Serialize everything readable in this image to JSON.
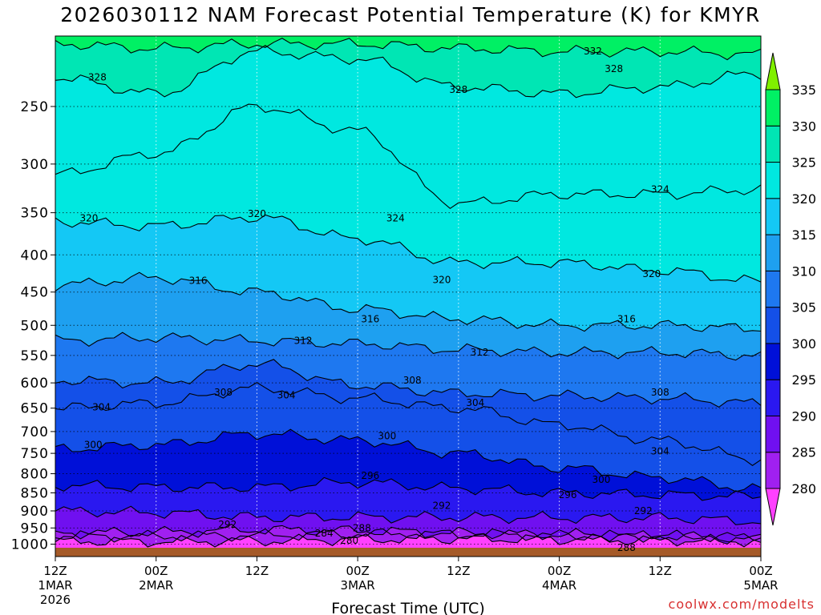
{
  "chart_data": {
    "type": "heatmap",
    "title": "2026030112 NAM Forecast Potential Temperature (K) for KMYR",
    "xlabel": "Forecast Time (UTC)",
    "ylabel": "",
    "y_axis_scale": "log-pressure",
    "ylim": [
      200,
      1040
    ],
    "y_ticks": [
      250,
      300,
      350,
      400,
      450,
      500,
      550,
      600,
      650,
      700,
      750,
      800,
      850,
      900,
      950,
      1000
    ],
    "x_ticks": [
      {
        "h": 0,
        "label": "12Z",
        "sub": "1MAR",
        "sub2": "2026"
      },
      {
        "h": 12,
        "label": "00Z",
        "sub": "2MAR"
      },
      {
        "h": 24,
        "label": "12Z"
      },
      {
        "h": 36,
        "label": "00Z",
        "sub": "3MAR"
      },
      {
        "h": 48,
        "label": "12Z"
      },
      {
        "h": 60,
        "label": "00Z",
        "sub": "4MAR"
      },
      {
        "h": 72,
        "label": "12Z"
      },
      {
        "h": 84,
        "label": "00Z",
        "sub": "5MAR"
      }
    ],
    "xlim_hours": [
      0,
      84
    ],
    "colorbar": {
      "levels": [
        280,
        285,
        290,
        295,
        300,
        305,
        310,
        315,
        320,
        325,
        330,
        335
      ],
      "colors": [
        "#ff40ff",
        "#a020f0",
        "#7010f0",
        "#2a18f0",
        "#0010d8",
        "#1450e8",
        "#1e78f0",
        "#1ea0f0",
        "#14c8f5",
        "#00e8e0",
        "#00e6b4",
        "#00f064",
        "#80f000"
      ]
    },
    "terrain_color": "#a55a28",
    "series": [
      {
        "name": "280",
        "p": [
          990,
          992,
          990,
          985,
          983,
          985,
          988,
          990
        ]
      },
      {
        "name": "284",
        "p": [
          975,
          975,
          972,
          968,
          968,
          972,
          975,
          978
        ]
      },
      {
        "name": "288",
        "p": [
          965,
          963,
          955,
          958,
          965,
          970,
          975,
          985
        ]
      },
      {
        "name": "292",
        "p": [
          900,
          905,
          918,
          918,
          918,
          920,
          920,
          930
        ]
      },
      {
        "name": "296",
        "p": [
          830,
          835,
          835,
          822,
          838,
          850,
          855,
          860
        ]
      },
      {
        "name": "300",
        "p": [
          740,
          730,
          705,
          720,
          750,
          785,
          810,
          840
        ]
      },
      {
        "name": "304",
        "p": [
          650,
          640,
          610,
          630,
          650,
          685,
          720,
          765
        ]
      },
      {
        "name": "308",
        "p": [
          595,
          600,
          565,
          605,
          620,
          625,
          630,
          640
        ]
      },
      {
        "name": "312",
        "p": [
          525,
          520,
          525,
          530,
          540,
          545,
          545,
          550
        ]
      },
      {
        "name": "316",
        "p": [
          440,
          430,
          450,
          475,
          490,
          500,
          500,
          505
        ]
      },
      {
        "name": "320",
        "p": [
          360,
          365,
          355,
          380,
          410,
          410,
          420,
          435
        ]
      },
      {
        "name": "324",
        "p": [
          310,
          290,
          250,
          270,
          340,
          330,
          330,
          325
        ]
      },
      {
        "name": "328",
        "p": [
          228,
          240,
          210,
          215,
          235,
          240,
          235,
          225
        ]
      },
      {
        "name": "332",
        "p": [
          205,
          208,
          205,
          205,
          208,
          210,
          210,
          212
        ]
      }
    ],
    "contour_labels": [
      {
        "text": "328",
        "h": 5.0,
        "p": 228
      },
      {
        "text": "332",
        "h": 64.0,
        "p": 210
      },
      {
        "text": "328",
        "h": 66.5,
        "p": 222
      },
      {
        "text": "328",
        "h": 48.0,
        "p": 237
      },
      {
        "text": "324",
        "h": 72.0,
        "p": 325
      },
      {
        "text": "324",
        "h": 40.5,
        "p": 356
      },
      {
        "text": "320",
        "h": 4.0,
        "p": 356
      },
      {
        "text": "320",
        "h": 24.0,
        "p": 351
      },
      {
        "text": "320",
        "h": 46.0,
        "p": 433
      },
      {
        "text": "320",
        "h": 71.0,
        "p": 425
      },
      {
        "text": "316",
        "h": 17.0,
        "p": 434
      },
      {
        "text": "316",
        "h": 37.5,
        "p": 490
      },
      {
        "text": "316",
        "h": 68.0,
        "p": 490
      },
      {
        "text": "312",
        "h": 29.5,
        "p": 525
      },
      {
        "text": "312",
        "h": 50.5,
        "p": 545
      },
      {
        "text": "308",
        "h": 42.5,
        "p": 595
      },
      {
        "text": "308",
        "h": 20.0,
        "p": 618
      },
      {
        "text": "308",
        "h": 72.0,
        "p": 618
      },
      {
        "text": "304",
        "h": 5.5,
        "p": 648
      },
      {
        "text": "304",
        "h": 27.5,
        "p": 624
      },
      {
        "text": "304",
        "h": 50.0,
        "p": 639
      },
      {
        "text": "304",
        "h": 72.0,
        "p": 745
      },
      {
        "text": "300",
        "h": 4.5,
        "p": 730
      },
      {
        "text": "300",
        "h": 39.5,
        "p": 710
      },
      {
        "text": "300",
        "h": 65.0,
        "p": 815
      },
      {
        "text": "296",
        "h": 37.5,
        "p": 805
      },
      {
        "text": "296",
        "h": 61.0,
        "p": 855
      },
      {
        "text": "292",
        "h": 46.0,
        "p": 885
      },
      {
        "text": "292",
        "h": 70.0,
        "p": 900
      },
      {
        "text": "292",
        "h": 20.5,
        "p": 940
      },
      {
        "text": "288",
        "h": 36.5,
        "p": 950
      },
      {
        "text": "288",
        "h": 68.0,
        "p": 1012
      },
      {
        "text": "284",
        "h": 32.0,
        "p": 966
      },
      {
        "text": "280",
        "h": 35.0,
        "p": 988
      }
    ]
  },
  "credit": "coolwx.com/modelts"
}
